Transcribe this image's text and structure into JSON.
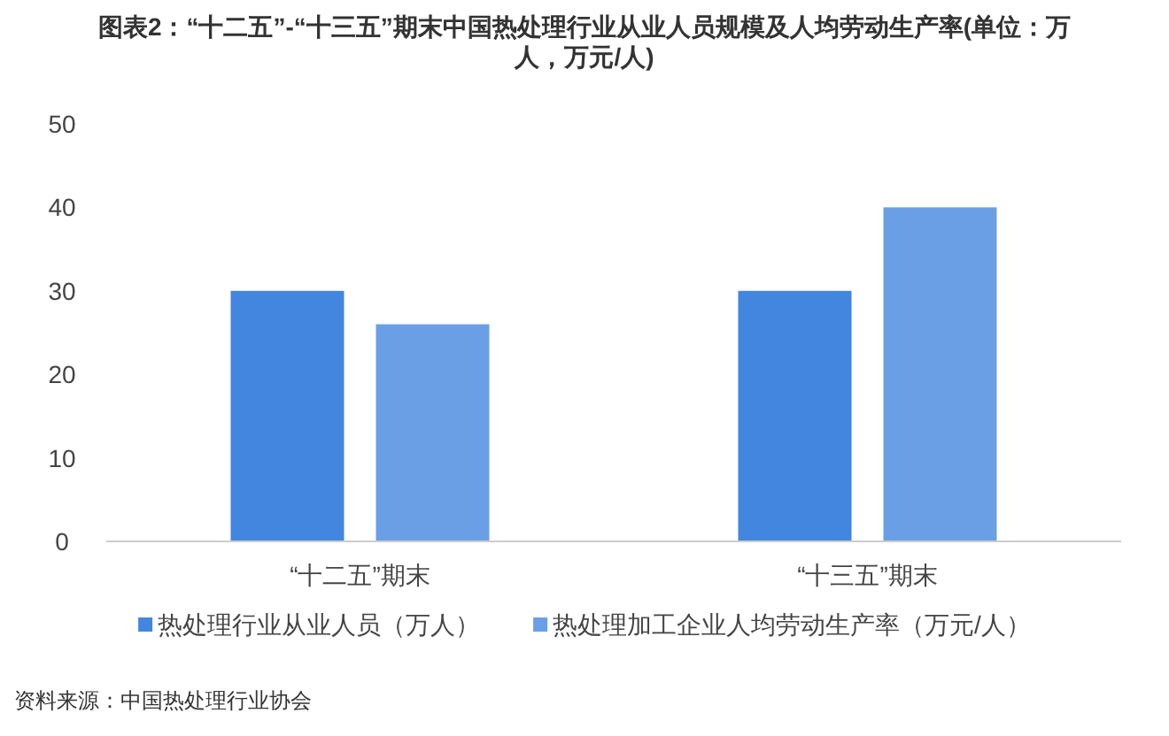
{
  "chart_data": {
    "type": "bar",
    "title": "图表2：“十二五”-“十三五”期末中国热处理行业从业人员规模及人均劳动生产率(单位：万人，万元/人)",
    "categories": [
      "“十二五”期末",
      "“十三五”期末"
    ],
    "series": [
      {
        "name": "热处理行业从业人员（万人）",
        "color": "#4286e0",
        "values": [
          30,
          30
        ]
      },
      {
        "name": "热处理加工企业人均劳动生产率（万元/人）",
        "color": "#6a9fe6",
        "values": [
          26,
          40
        ]
      }
    ],
    "ylim": [
      0,
      50
    ],
    "yticks": [
      0,
      10,
      20,
      30,
      40,
      50
    ],
    "grid": false,
    "legend": "bottom",
    "annotations": [
      "资料来源：中国热处理行业协会"
    ]
  }
}
